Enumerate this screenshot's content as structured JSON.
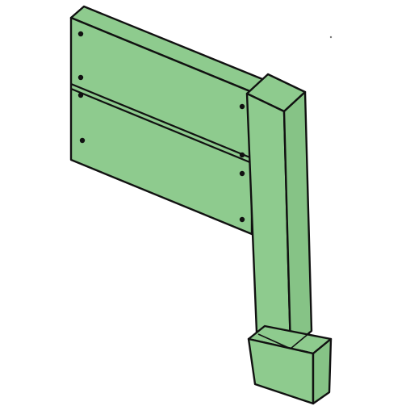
{
  "illustration": {
    "subject": "sign-post-with-two-boards",
    "colors": {
      "fill": "#8ecb8e",
      "fill_shade": "#86c386",
      "outline": "#111111",
      "background": "#ffffff"
    }
  }
}
